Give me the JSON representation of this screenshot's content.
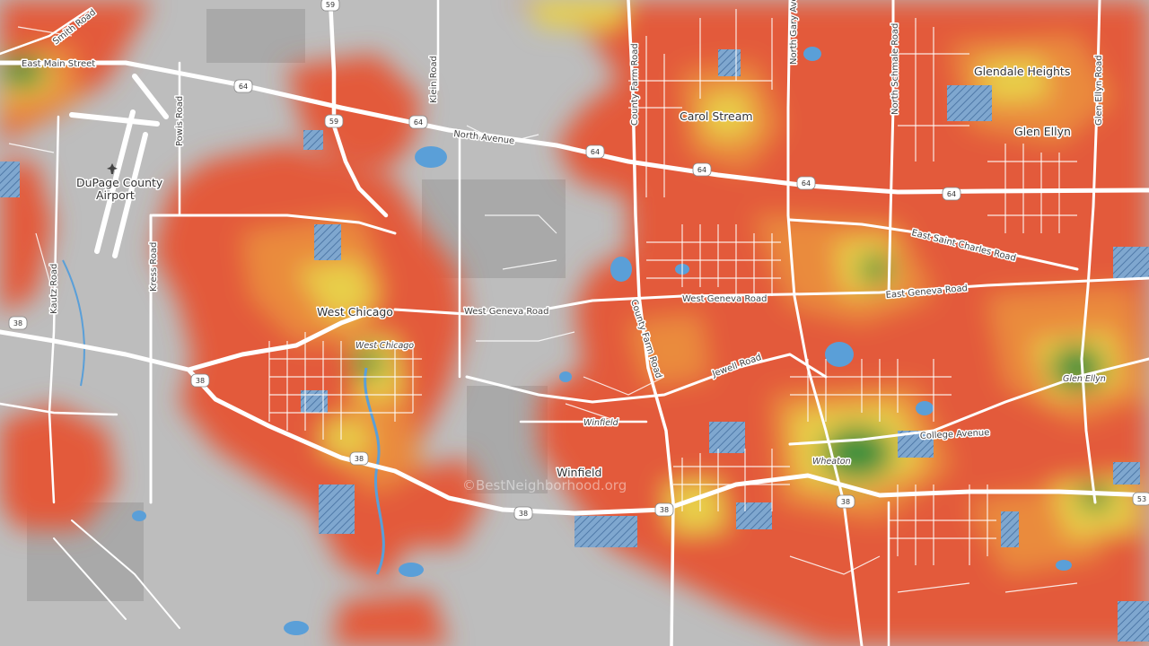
{
  "map": {
    "cities": [
      {
        "id": "glendale-heights",
        "text": "Glendale Heights"
      },
      {
        "id": "carol-stream",
        "text": "Carol Stream"
      },
      {
        "id": "glen-ellyn",
        "text": "Glen Ellyn"
      },
      {
        "id": "west-chicago",
        "text": "West Chicago"
      },
      {
        "id": "winfield",
        "text": "Winfield"
      },
      {
        "id": "dupage-airport-1",
        "text": "DuPage County"
      },
      {
        "id": "dupage-airport-2",
        "text": "Airport"
      }
    ],
    "streets": [
      {
        "id": "smith-road",
        "text": "Smith Road"
      },
      {
        "id": "east-main-street",
        "text": "East Main Street"
      },
      {
        "id": "powis-road",
        "text": "Powis Road"
      },
      {
        "id": "klein-road",
        "text": "Klein Road"
      },
      {
        "id": "north-avenue",
        "text": "North Avenue"
      },
      {
        "id": "county-farm-road-north",
        "text": "County Farm Road"
      },
      {
        "id": "north-gary-avenue",
        "text": "North Gary Avenue"
      },
      {
        "id": "north-schmale-road",
        "text": "North Schmale Road"
      },
      {
        "id": "glen-ellyn-road",
        "text": "Glen Ellyn Road"
      },
      {
        "id": "east-saint-charles-road",
        "text": "East Saint Charles Road"
      },
      {
        "id": "west-geneva-road-west",
        "text": "West Geneva Road"
      },
      {
        "id": "west-geneva-road-east",
        "text": "West Geneva Road"
      },
      {
        "id": "east-geneva-road",
        "text": "East Geneva Road"
      },
      {
        "id": "county-farm-road-south",
        "text": "County Farm Road"
      },
      {
        "id": "jewell-road",
        "text": "Jewell Road"
      },
      {
        "id": "college-avenue",
        "text": "College Avenue"
      },
      {
        "id": "kress-road",
        "text": "Kress Road"
      },
      {
        "id": "kautz-road",
        "text": "Kautz Road"
      }
    ],
    "transit": [
      {
        "id": "west-chicago-station",
        "text": "West Chicago"
      },
      {
        "id": "winfield-station",
        "text": "Winfield"
      },
      {
        "id": "wheaton-station",
        "text": "Wheaton"
      },
      {
        "id": "glen-ellyn-station",
        "text": "Glen Ellyn"
      }
    ],
    "shields": [
      {
        "id": "r59-top",
        "text": "59"
      },
      {
        "id": "r64-a",
        "text": "64"
      },
      {
        "id": "r59-b",
        "text": "59"
      },
      {
        "id": "r64-b",
        "text": "64"
      },
      {
        "id": "r64-c",
        "text": "64"
      },
      {
        "id": "r64-d",
        "text": "64"
      },
      {
        "id": "r64-e",
        "text": "64"
      },
      {
        "id": "r64-f",
        "text": "64"
      },
      {
        "id": "r38-a",
        "text": "38"
      },
      {
        "id": "r38-b",
        "text": "38"
      },
      {
        "id": "r38-c",
        "text": "38"
      },
      {
        "id": "r38-d",
        "text": "38"
      },
      {
        "id": "r38-e",
        "text": "38"
      },
      {
        "id": "r38-f",
        "text": "38"
      },
      {
        "id": "r53",
        "text": "53"
      }
    ],
    "watermark": "©BestNeighborhood.org",
    "colors": {
      "background": "#bdbdbd",
      "heat_red": "#e35a3b",
      "heat_orange": "#ea8b3e",
      "heat_yellow": "#e8cf4a",
      "heat_green": "#3c8f3c",
      "water": "#5a9fd8",
      "road": "#ffffff"
    },
    "icons": [
      "airport-icon"
    ]
  }
}
